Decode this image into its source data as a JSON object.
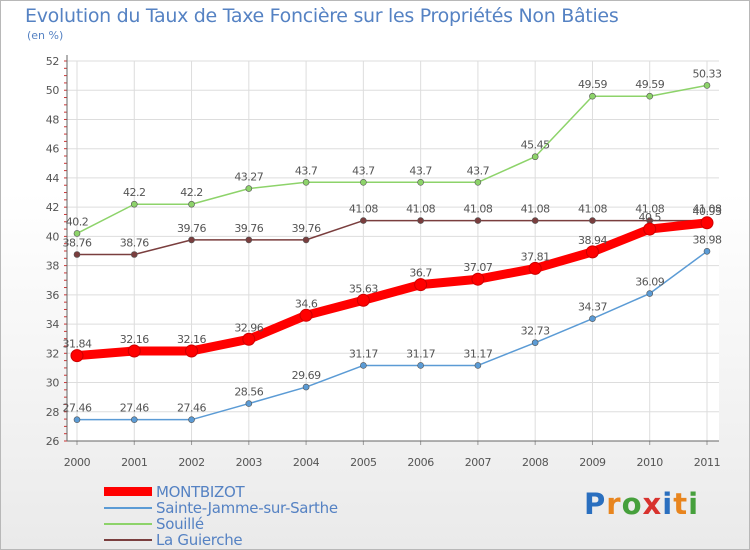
{
  "header": {
    "title": "Evolution du Taux de Taxe Foncière sur les Propriétés Non Bâties",
    "unit": "(en %)"
  },
  "logo": {
    "text": "Proxiti",
    "colors": [
      "#2a6fbf",
      "#e8851e",
      "#46a03c",
      "#d8322e",
      "#2a6fbf",
      "#e8851e",
      "#46a03c"
    ]
  },
  "chart_data": {
    "type": "line",
    "x": [
      "2000",
      "2001",
      "2002",
      "2003",
      "2004",
      "2005",
      "2006",
      "2007",
      "2008",
      "2009",
      "2010",
      "2011"
    ],
    "ylim": [
      26,
      52
    ],
    "yticks": [
      26,
      28,
      30,
      32,
      34,
      36,
      38,
      40,
      42,
      44,
      46,
      48,
      50,
      52
    ],
    "grid": true,
    "legend_position": "bottom-left",
    "series": [
      {
        "name": "MONTBIZOT",
        "color": "#ff0000",
        "width": 9,
        "values": [
          31.84,
          32.16,
          32.16,
          32.96,
          34.6,
          35.63,
          36.7,
          37.07,
          37.81,
          38.94,
          40.5,
          40.93
        ],
        "labels": [
          "31.84",
          "32.16",
          "32.16",
          "32.96",
          "34.6",
          "35.63",
          "36.7",
          "37.07",
          "37.81",
          "38.94",
          "40.5",
          "40.93"
        ]
      },
      {
        "name": "Sainte-Jamme-sur-Sarthe",
        "color": "#5b9bd5",
        "width": 1.5,
        "values": [
          27.46,
          27.46,
          27.46,
          28.56,
          29.69,
          31.17,
          31.17,
          31.17,
          32.73,
          34.37,
          36.09,
          38.98
        ],
        "labels": [
          "27.46",
          "27.46",
          "27.46",
          "28.56",
          "29.69",
          "31.17",
          "31.17",
          "31.17",
          "32.73",
          "34.37",
          "36.09",
          "38.98"
        ]
      },
      {
        "name": "Souillé",
        "color": "#8dd36a",
        "width": 1.5,
        "values": [
          40.2,
          42.2,
          42.2,
          43.27,
          43.7,
          43.7,
          43.7,
          43.7,
          45.45,
          49.59,
          49.59,
          50.33
        ],
        "labels": [
          "40.2",
          "42.2",
          "42.2",
          "43.27",
          "43.7",
          "43.7",
          "43.7",
          "43.7",
          "45.45",
          "49.59",
          "49.59",
          "50.33"
        ]
      },
      {
        "name": "La Guierche",
        "color": "#7a3e3e",
        "width": 1.5,
        "values": [
          38.76,
          38.76,
          39.76,
          39.76,
          39.76,
          41.08,
          41.08,
          41.08,
          41.08,
          41.08,
          41.08,
          41.08
        ],
        "labels": [
          "38.76",
          "38.76",
          "39.76",
          "39.76",
          "39.76",
          "41.08",
          "41.08",
          "41.08",
          "41.08",
          "41.08",
          "41.08",
          "41.08"
        ]
      }
    ]
  }
}
